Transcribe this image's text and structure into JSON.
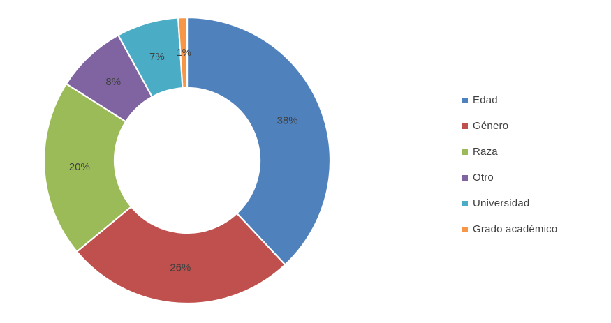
{
  "chart_data": {
    "type": "pie",
    "variant": "doughnut",
    "categories": [
      "Edad",
      "Género",
      "Raza",
      "Otro",
      "Universidad",
      "Grado académico"
    ],
    "values": [
      38,
      26,
      20,
      8,
      7,
      1
    ],
    "labels": [
      "38%",
      "26%",
      "20%",
      "8%",
      "7%",
      "1%"
    ],
    "colors": [
      "#4F81BD",
      "#C0504D",
      "#9BBB59",
      "#8064A2",
      "#4BACC6",
      "#F79646"
    ],
    "legend_position": "right"
  }
}
